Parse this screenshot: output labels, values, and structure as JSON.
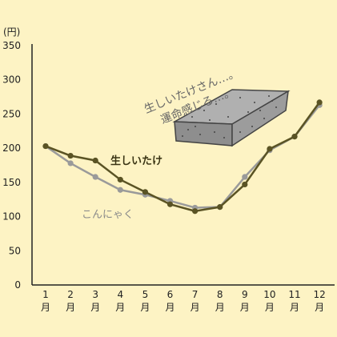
{
  "chart_data": {
    "type": "line",
    "unit_label": "(円)",
    "categories": [
      "1\n月",
      "2\n月",
      "3\n月",
      "4\n月",
      "5\n月",
      "6\n月",
      "7\n月",
      "8\n月",
      "9\n月",
      "10\n月",
      "11\n月",
      "12\n月"
    ],
    "category_numbers": [
      "1",
      "2",
      "3",
      "4",
      "5",
      "6",
      "7",
      "8",
      "9",
      "10",
      "11",
      "12"
    ],
    "category_suffix": "月",
    "ylim": [
      0,
      350
    ],
    "yticks": [
      0,
      50,
      100,
      150,
      200,
      250,
      300,
      350
    ],
    "grid": false,
    "series": [
      {
        "name": "生しいたけ",
        "color": "#5a5324",
        "values": [
          203,
          189,
          182,
          154,
          136,
          118,
          108,
          114,
          147,
          199,
          217,
          267
        ]
      },
      {
        "name": "こんにゃく",
        "color": "#9a9a9a",
        "values": [
          203,
          178,
          158,
          139,
          132,
          123,
          113,
          114,
          158,
          197,
          217,
          263
        ]
      }
    ],
    "annotation": [
      "生しいたけさん…。",
      "運命感じる…。"
    ]
  },
  "colors": {
    "background": "#fdf3c4",
    "axis": "#222222",
    "konnyaku_block": "#8e8e8e"
  }
}
